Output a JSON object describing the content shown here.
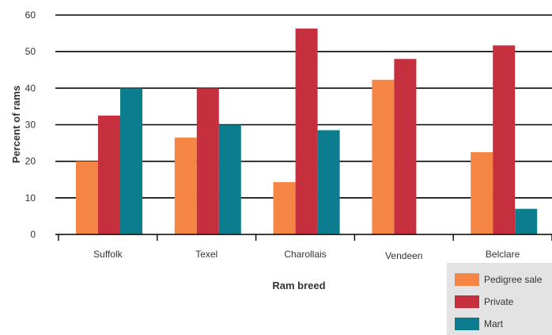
{
  "chart_data": {
    "type": "bar",
    "categories": [
      "Suffolk",
      "Texel",
      "Charollais",
      "Vendeen",
      "Belclare"
    ],
    "series": [
      {
        "name": "Pedigree sale",
        "color": "#f58545",
        "values": [
          20,
          26.5,
          14.3,
          42.3,
          22.5
        ]
      },
      {
        "name": "Private",
        "color": "#c6303e",
        "values": [
          32.5,
          40,
          56.3,
          48,
          51.7
        ]
      },
      {
        "name": "Mart",
        "color": "#0b7d8f",
        "values": [
          40,
          30,
          28.5,
          0,
          7
        ]
      }
    ],
    "xlabel": "Ram breed",
    "ylabel": "Percent of rams",
    "ylim": [
      0,
      60
    ],
    "yticks": [
      "0",
      "10",
      "20",
      "30",
      "40",
      "50",
      "60"
    ],
    "grid": true,
    "legend_position": "bottom-right"
  }
}
